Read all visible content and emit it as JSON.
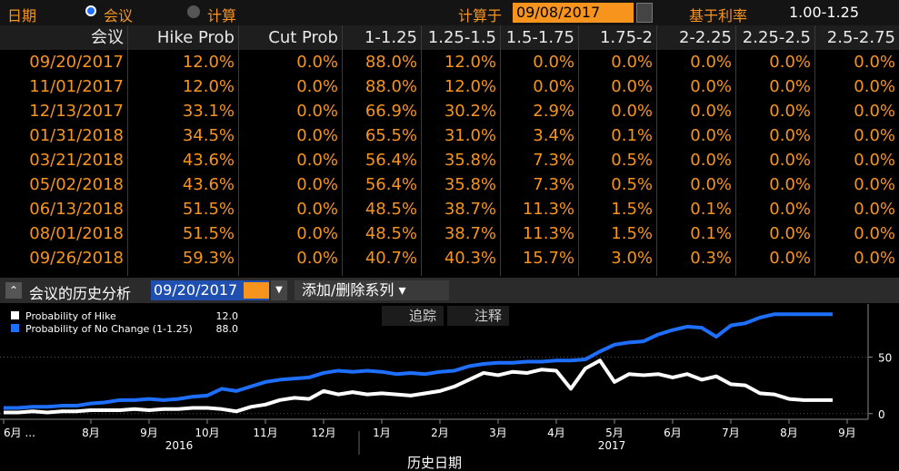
{
  "toolbar": {
    "date_label": "日期",
    "option_meeting": "会议",
    "option_calc": "计算",
    "calc_label": "计算于",
    "calc_date": "09/08/2017",
    "base_rate_label": "基于利率",
    "base_rate": "1.00-1.25"
  },
  "table": {
    "headers": [
      "会议",
      "Hike Prob",
      "Cut Prob",
      "1-1.25",
      "1.25-1.5",
      "1.5-1.75",
      "1.75-2",
      "2-2.25",
      "2.25-2.5",
      "2.5-2.75"
    ],
    "rows": [
      [
        "09/20/2017",
        "12.0%",
        "0.0%",
        "88.0%",
        "12.0%",
        "0.0%",
        "0.0%",
        "0.0%",
        "0.0%",
        "0.0%"
      ],
      [
        "11/01/2017",
        "12.0%",
        "0.0%",
        "88.0%",
        "12.0%",
        "0.0%",
        "0.0%",
        "0.0%",
        "0.0%",
        "0.0%"
      ],
      [
        "12/13/2017",
        "33.1%",
        "0.0%",
        "66.9%",
        "30.2%",
        "2.9%",
        "0.0%",
        "0.0%",
        "0.0%",
        "0.0%"
      ],
      [
        "01/31/2018",
        "34.5%",
        "0.0%",
        "65.5%",
        "31.0%",
        "3.4%",
        "0.1%",
        "0.0%",
        "0.0%",
        "0.0%"
      ],
      [
        "03/21/2018",
        "43.6%",
        "0.0%",
        "56.4%",
        "35.8%",
        "7.3%",
        "0.5%",
        "0.0%",
        "0.0%",
        "0.0%"
      ],
      [
        "05/02/2018",
        "43.6%",
        "0.0%",
        "56.4%",
        "35.8%",
        "7.3%",
        "0.5%",
        "0.0%",
        "0.0%",
        "0.0%"
      ],
      [
        "06/13/2018",
        "51.5%",
        "0.0%",
        "48.5%",
        "38.7%",
        "11.3%",
        "1.5%",
        "0.1%",
        "0.0%",
        "0.0%"
      ],
      [
        "08/01/2018",
        "51.5%",
        "0.0%",
        "48.5%",
        "38.7%",
        "11.3%",
        "1.5%",
        "0.1%",
        "0.0%",
        "0.0%"
      ],
      [
        "09/26/2018",
        "59.3%",
        "0.0%",
        "40.7%",
        "40.3%",
        "15.7%",
        "3.0%",
        "0.3%",
        "0.0%",
        "0.0%"
      ]
    ]
  },
  "history_bar": {
    "title": "会议的历史分析",
    "meeting": "09/20/2017",
    "series_button": "添加/删除系列"
  },
  "chart_tools": {
    "track": "追踪",
    "annotate": "注释"
  },
  "chart_data": {
    "type": "line",
    "x_label": "历史日期",
    "categories": [
      "6月 ...",
      null,
      null,
      null,
      null,
      null,
      "8月",
      null,
      null,
      null,
      "9月",
      null,
      null,
      null,
      "10月",
      null,
      null,
      null,
      "11月",
      null,
      null,
      null,
      "12月",
      null,
      null,
      null,
      "1月",
      null,
      null,
      null,
      "2月",
      null,
      null,
      null,
      "3月",
      null,
      null,
      null,
      "4月",
      null,
      null,
      null,
      "5月",
      null,
      null,
      null,
      "6月",
      null,
      null,
      null,
      "7月",
      null,
      null,
      null,
      "8月",
      null,
      null,
      null,
      "9月"
    ],
    "years": [
      "2016",
      "2017"
    ],
    "series": [
      {
        "name": "Probability of Hike",
        "color": "#ffffff",
        "legend_value": "12.0",
        "values": [
          1,
          1,
          2,
          1,
          2,
          2,
          3,
          3,
          3,
          4,
          3,
          4,
          4,
          5,
          5,
          4,
          2,
          6,
          8,
          12,
          14,
          13,
          20,
          17,
          19,
          17,
          18,
          17,
          16,
          18,
          20,
          24,
          30,
          36,
          34,
          37,
          36,
          39,
          38,
          22,
          40,
          47,
          28,
          35,
          34,
          35,
          32,
          35,
          30,
          33,
          26,
          25,
          18,
          17,
          13,
          12,
          12,
          12,
          null
        ]
      },
      {
        "name": "Probability of No Change (1-1.25)",
        "color": "#1f6fff",
        "legend_value": "88.0",
        "values": [
          5,
          5,
          6,
          6,
          7,
          7,
          9,
          10,
          12,
          12,
          13,
          12,
          13,
          15,
          16,
          22,
          20,
          24,
          28,
          30,
          31,
          32,
          36,
          38,
          37,
          38,
          37,
          35,
          36,
          35,
          37,
          38,
          42,
          44,
          45,
          45,
          46,
          46,
          47,
          47,
          48,
          55,
          61,
          63,
          64,
          70,
          74,
          77,
          76,
          68,
          78,
          80,
          85,
          88,
          88,
          88,
          88,
          88,
          null
        ]
      }
    ],
    "ylim": [
      -5,
      97
    ],
    "yticks": [
      0,
      50
    ],
    "grid": true
  }
}
